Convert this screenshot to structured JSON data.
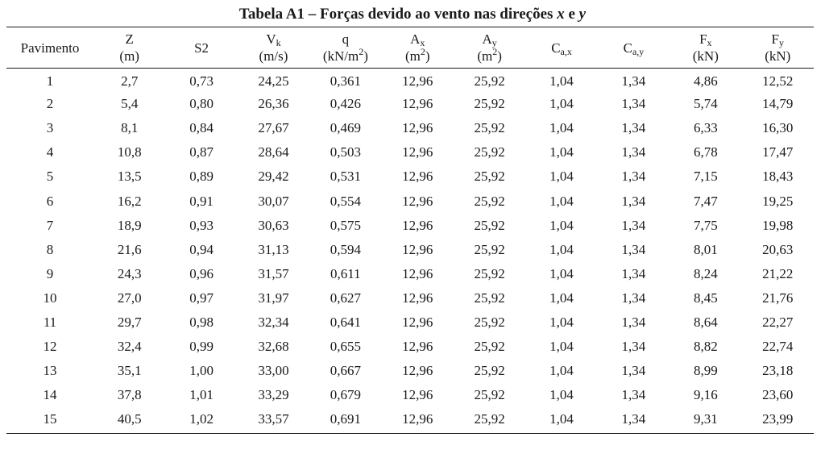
{
  "caption": {
    "prefix": "Tabela A1 – Forças devido ao vento nas direções ",
    "var_x": "x",
    "conj": " e ",
    "var_y": "y"
  },
  "header": {
    "pavimento": "Pavimento",
    "z": {
      "sym": "Z",
      "unit": "(m)"
    },
    "s2": {
      "sym": "S2"
    },
    "vk": {
      "sym": "V",
      "sub": "k",
      "unit": "(m/s)"
    },
    "q": {
      "sym": "q",
      "unit_pre": "(kN/m",
      "unit_sup": "2",
      "unit_post": ")"
    },
    "ax": {
      "sym": "A",
      "sub": "x",
      "unit_pre": "(m",
      "unit_sup": "2",
      "unit_post": ")"
    },
    "ay": {
      "sym": "A",
      "sub": "y",
      "unit_pre": "(m",
      "unit_sup": "2",
      "unit_post": ")"
    },
    "cax": {
      "sym": "C",
      "sub": "a,x"
    },
    "cay": {
      "sym": "C",
      "sub": "a,y"
    },
    "fx": {
      "sym": "F",
      "sub": "x",
      "unit": "(kN)"
    },
    "fy": {
      "sym": "F",
      "sub": "y",
      "unit": "(kN)"
    }
  },
  "rows": [
    [
      "1",
      "2,7",
      "0,73",
      "24,25",
      "0,361",
      "12,96",
      "25,92",
      "1,04",
      "1,34",
      "4,86",
      "12,52"
    ],
    [
      "2",
      "5,4",
      "0,80",
      "26,36",
      "0,426",
      "12,96",
      "25,92",
      "1,04",
      "1,34",
      "5,74",
      "14,79"
    ],
    [
      "3",
      "8,1",
      "0,84",
      "27,67",
      "0,469",
      "12,96",
      "25,92",
      "1,04",
      "1,34",
      "6,33",
      "16,30"
    ],
    [
      "4",
      "10,8",
      "0,87",
      "28,64",
      "0,503",
      "12,96",
      "25,92",
      "1,04",
      "1,34",
      "6,78",
      "17,47"
    ],
    [
      "5",
      "13,5",
      "0,89",
      "29,42",
      "0,531",
      "12,96",
      "25,92",
      "1,04",
      "1,34",
      "7,15",
      "18,43"
    ],
    [
      "6",
      "16,2",
      "0,91",
      "30,07",
      "0,554",
      "12,96",
      "25,92",
      "1,04",
      "1,34",
      "7,47",
      "19,25"
    ],
    [
      "7",
      "18,9",
      "0,93",
      "30,63",
      "0,575",
      "12,96",
      "25,92",
      "1,04",
      "1,34",
      "7,75",
      "19,98"
    ],
    [
      "8",
      "21,6",
      "0,94",
      "31,13",
      "0,594",
      "12,96",
      "25,92",
      "1,04",
      "1,34",
      "8,01",
      "20,63"
    ],
    [
      "9",
      "24,3",
      "0,96",
      "31,57",
      "0,611",
      "12,96",
      "25,92",
      "1,04",
      "1,34",
      "8,24",
      "21,22"
    ],
    [
      "10",
      "27,0",
      "0,97",
      "31,97",
      "0,627",
      "12,96",
      "25,92",
      "1,04",
      "1,34",
      "8,45",
      "21,76"
    ],
    [
      "11",
      "29,7",
      "0,98",
      "32,34",
      "0,641",
      "12,96",
      "25,92",
      "1,04",
      "1,34",
      "8,64",
      "22,27"
    ],
    [
      "12",
      "32,4",
      "0,99",
      "32,68",
      "0,655",
      "12,96",
      "25,92",
      "1,04",
      "1,34",
      "8,82",
      "22,74"
    ],
    [
      "13",
      "35,1",
      "1,00",
      "33,00",
      "0,667",
      "12,96",
      "25,92",
      "1,04",
      "1,34",
      "8,99",
      "23,18"
    ],
    [
      "14",
      "37,8",
      "1,01",
      "33,29",
      "0,679",
      "12,96",
      "25,92",
      "1,04",
      "1,34",
      "9,16",
      "23,60"
    ],
    [
      "15",
      "40,5",
      "1,02",
      "33,57",
      "0,691",
      "12,96",
      "25,92",
      "1,04",
      "1,34",
      "9,31",
      "23,99"
    ]
  ]
}
